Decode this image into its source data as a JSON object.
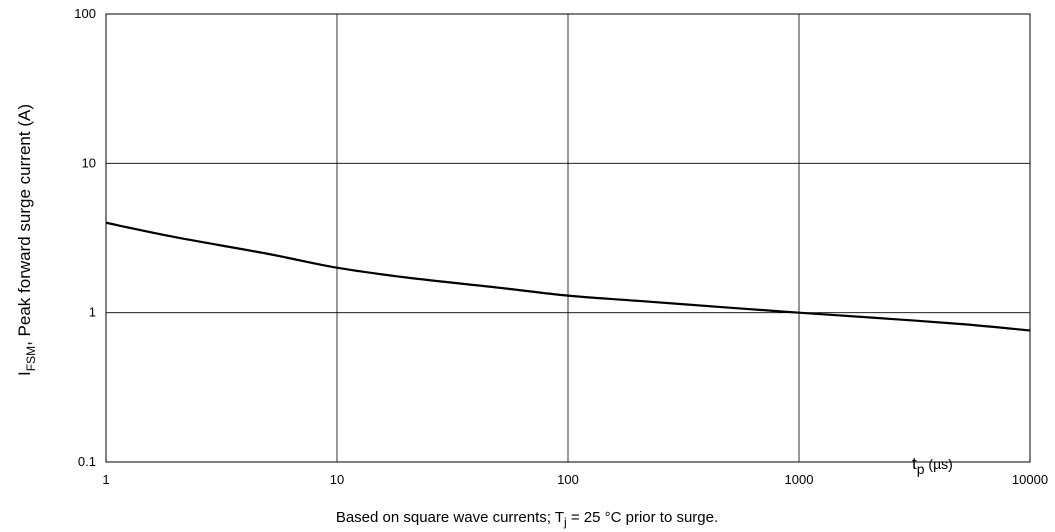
{
  "chart_data": {
    "type": "line",
    "xscale": "log",
    "yscale": "log",
    "xlim": [
      1,
      10000
    ],
    "ylim": [
      0.1,
      100
    ],
    "x_ticks": [
      "1",
      "10",
      "100",
      "1000",
      "10000"
    ],
    "y_ticks": [
      "0.1",
      "1",
      "10",
      "100"
    ],
    "grid": true,
    "xlabel": {
      "main": "t",
      "sub": "p",
      "unit": " (µs)"
    },
    "ylabel": {
      "main": "I",
      "sub": "FSM",
      "rest": ", Peak forward surge current (A)"
    },
    "caption": {
      "before": "Based on square wave currents; T",
      "sub": "j",
      "after": " = 25 °C prior to surge."
    },
    "series": [
      {
        "color": "#000000",
        "x": [
          1,
          2,
          5,
          10,
          20,
          50,
          100,
          200,
          500,
          1000,
          2000,
          5000,
          10000
        ],
        "y": [
          4.0,
          3.2,
          2.48,
          2.0,
          1.72,
          1.47,
          1.3,
          1.2,
          1.08,
          1.0,
          0.93,
          0.84,
          0.76
        ]
      }
    ]
  }
}
